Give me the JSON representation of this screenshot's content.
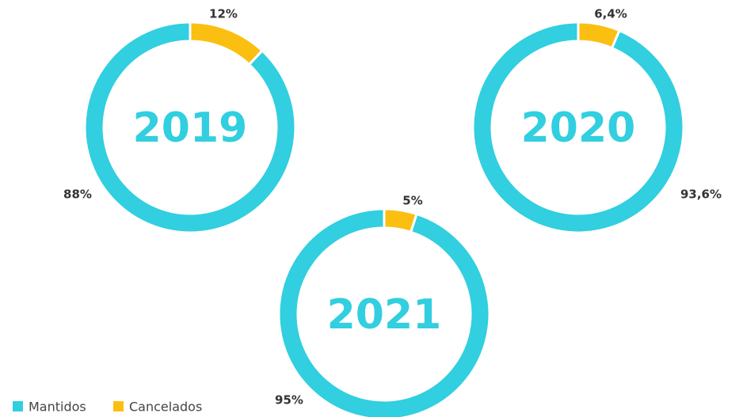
{
  "chart_data": [
    {
      "type": "pie",
      "title": "2019",
      "categories": [
        "Mantidos",
        "Cancelados"
      ],
      "values": [
        88,
        12
      ],
      "value_labels": [
        "88%",
        "12%"
      ],
      "colors": [
        "#31cfdf",
        "#fbbf12"
      ]
    },
    {
      "type": "pie",
      "title": "2020",
      "categories": [
        "Mantidos",
        "Cancelados"
      ],
      "values": [
        93.6,
        6.4
      ],
      "value_labels": [
        "93,6%",
        "6,4%"
      ],
      "colors": [
        "#31cfdf",
        "#fbbf12"
      ]
    },
    {
      "type": "pie",
      "title": "2021",
      "categories": [
        "Mantidos",
        "Cancelados"
      ],
      "values": [
        95,
        5
      ],
      "value_labels": [
        "95%",
        "5%"
      ],
      "colors": [
        "#31cfdf",
        "#fbbf12"
      ]
    }
  ]
}
